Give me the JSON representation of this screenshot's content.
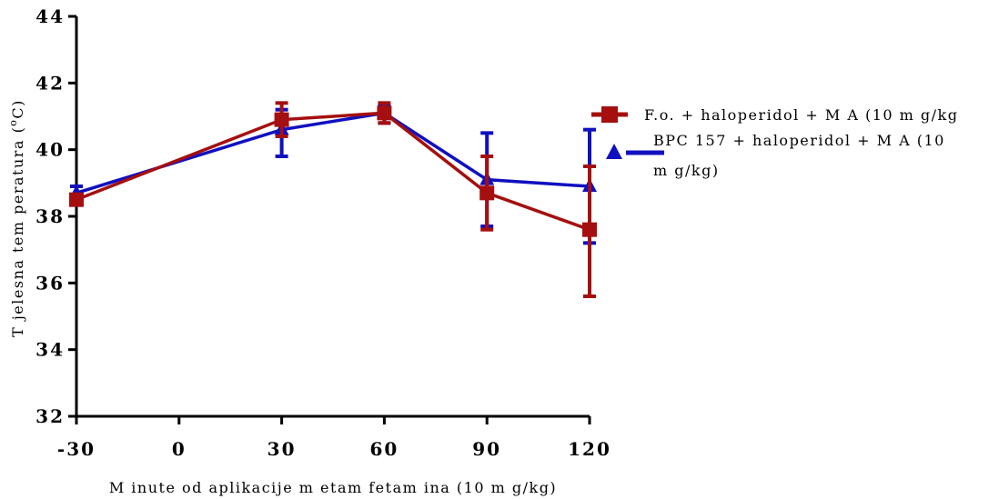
{
  "chart_data": {
    "type": "line",
    "xlabel": "M inute od aplikacije m etam fetam ina (10 m g/kg)",
    "ylabel": "T jelesna tem peratura (°C)",
    "ylabel_main": "T jelesna tem peratura (",
    "ylabel_sup": "o",
    "ylabel_end": "C)",
    "xlim": [
      -30,
      120
    ],
    "ylim": [
      32,
      44
    ],
    "x_ticks": [
      "-30",
      "0",
      "30",
      "60",
      "90",
      "120"
    ],
    "y_ticks": [
      "32",
      "34",
      "36",
      "38",
      "40",
      "42",
      "44"
    ],
    "x": [
      -30,
      30,
      60,
      90,
      120
    ],
    "legend_position": "right",
    "series": [
      {
        "name": "F.o. + haloperidol + M A (10 m g/kg",
        "legend_lines": [
          "F.o. + haloperidol + M A (10 m g/kg"
        ],
        "color": "#a50f0f",
        "marker": "square",
        "values": [
          38.5,
          40.9,
          41.1,
          38.7,
          37.6
        ],
        "err_low": [
          38.5,
          40.4,
          40.8,
          37.6,
          35.6
        ],
        "err_high": [
          38.5,
          41.4,
          41.4,
          39.8,
          39.5
        ]
      },
      {
        "name": "BPC 157 + haloperidol + M A (10 m g/kg)",
        "legend_lines": [
          "BPC 157 + haloperidol + M A (10",
          "m g/kg)"
        ],
        "color": "#1010c0",
        "marker": "triangle",
        "values": [
          38.7,
          40.6,
          41.1,
          39.1,
          38.9
        ],
        "err_low": [
          38.5,
          39.8,
          40.8,
          37.7,
          37.2
        ],
        "err_high": [
          38.9,
          41.2,
          41.3,
          40.5,
          40.6
        ]
      }
    ]
  }
}
